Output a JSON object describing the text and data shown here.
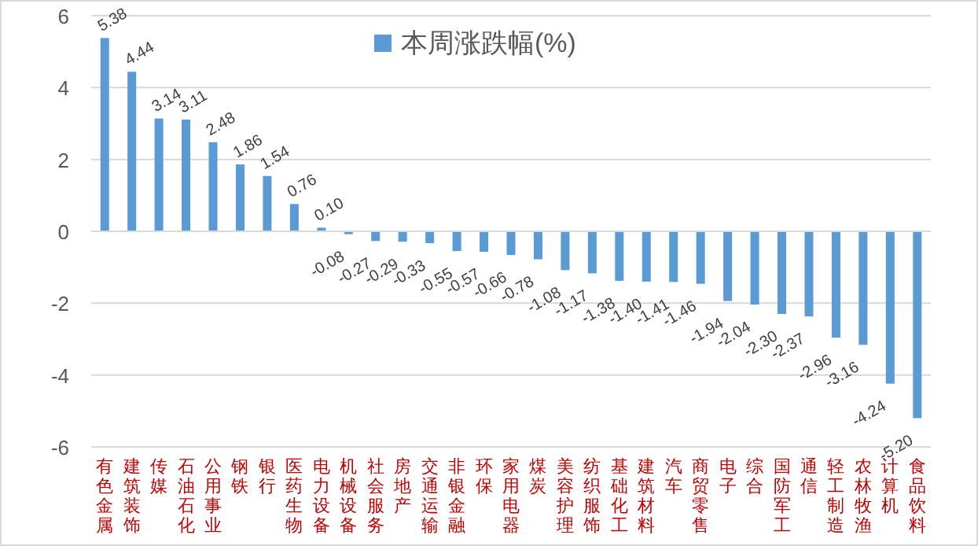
{
  "chart_data": {
    "type": "bar",
    "categories": [
      "有色金属",
      "建筑装饰",
      "传媒",
      "石油石化",
      "公用事业",
      "钢铁",
      "银行",
      "医药生物",
      "电力设备",
      "机械设备",
      "社会服务",
      "房地产",
      "交通运输",
      "非银金融",
      "环保",
      "家用电器",
      "煤炭",
      "美容护理",
      "纺织服饰",
      "基础化工",
      "建筑材料",
      "汽车",
      "商贸零售",
      "电子",
      "综合",
      "国防军工",
      "通信",
      "轻工制造",
      "农林牧渔",
      "计算机",
      "食品饮料"
    ],
    "series": [
      {
        "name": "本周涨跌幅(%)",
        "color": "#5b9bd5",
        "values": [
          5.38,
          4.44,
          3.14,
          3.11,
          2.48,
          1.86,
          1.54,
          0.76,
          0.1,
          -0.08,
          -0.27,
          -0.29,
          -0.33,
          -0.55,
          -0.57,
          -0.66,
          -0.78,
          -1.08,
          -1.17,
          -1.38,
          -1.4,
          -1.41,
          -1.46,
          -1.94,
          -2.04,
          -2.3,
          -2.37,
          -2.96,
          -3.16,
          -4.24,
          -5.2
        ]
      }
    ],
    "value_labels": [
      "5.38",
      "4.44",
      "3.14",
      "3.11",
      "2.48",
      "1.86",
      "1.54",
      "0.76",
      "0.10",
      "-0.08",
      "-0.27",
      "-0.29",
      "-0.33",
      "-0.55",
      "-0.57",
      "-0.66",
      "-0.78",
      "-1.08",
      "-1.17",
      "-1.38",
      "-1.40",
      "-1.41",
      "-1.46",
      "-1.94",
      "-2.04",
      "-2.30",
      "-2.37",
      "-2.96",
      "-3.16",
      "-4.24",
      "-5.20"
    ],
    "ylim": [
      -6,
      6
    ],
    "yticks": [
      -6,
      -4,
      -2,
      0,
      2,
      4,
      6
    ],
    "grid": "y",
    "legend": "top"
  }
}
